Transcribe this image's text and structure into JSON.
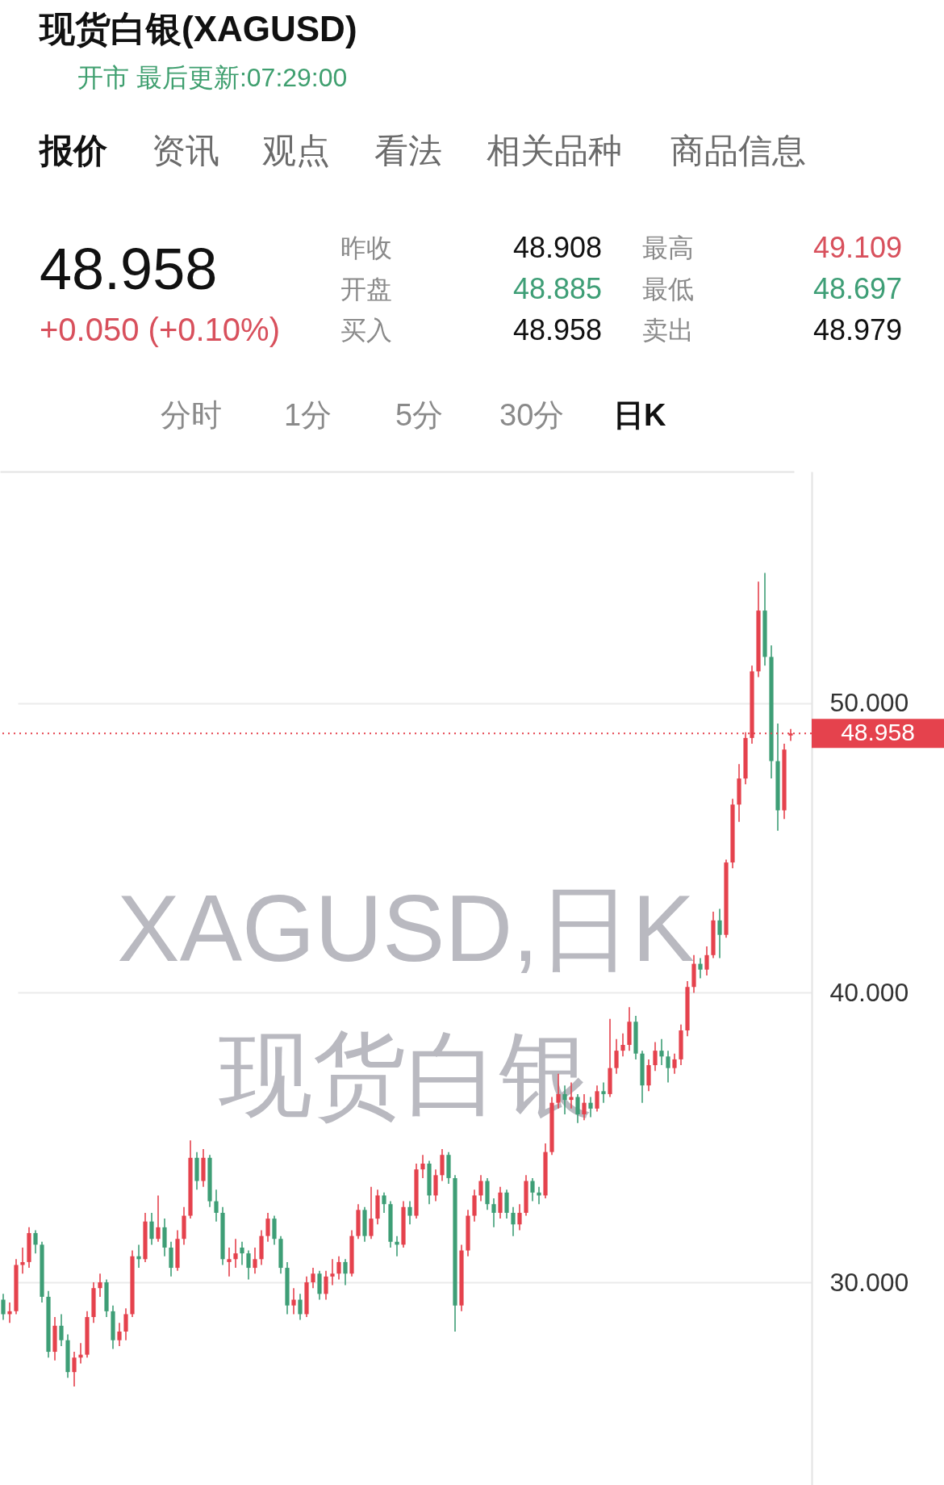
{
  "chart_data": {
    "type": "candlestick",
    "title": "现货白银(XAGUSD)",
    "subtitle": "开市 最后更新:07:29:00",
    "annotations": [
      "报价",
      "资讯",
      "观点",
      "看法",
      "相关品种",
      "商品信息",
      "48.958",
      "+0.050 (+0.10%)",
      "昨收",
      "48.908",
      "开盘",
      "48.885",
      "买入",
      "48.958",
      "最高",
      "49.109",
      "最低",
      "48.697",
      "卖出",
      "48.979",
      "分时",
      "1分",
      "5分",
      "30分",
      "日K",
      "XAGUSD,日K",
      "现货白银"
    ],
    "categories": [
      null,
      null,
      null,
      null,
      null,
      null,
      null,
      null,
      null,
      null,
      null,
      null,
      null,
      null,
      null,
      null,
      null,
      null,
      null,
      null,
      null,
      null,
      null,
      null,
      null,
      null,
      null,
      null,
      null,
      null,
      null,
      null,
      null,
      null,
      null,
      null,
      null,
      null,
      null,
      null,
      null,
      null,
      null,
      null,
      null,
      null,
      null,
      null,
      null,
      null,
      null,
      null,
      null,
      null,
      null,
      null,
      null,
      null,
      null,
      null,
      null,
      null,
      null,
      null,
      null,
      null,
      null,
      null,
      null,
      null,
      null,
      null,
      null,
      null,
      null,
      null,
      null,
      null,
      null,
      null,
      null,
      null,
      null,
      null,
      null,
      null,
      null,
      null,
      null,
      null,
      null,
      null,
      null,
      null,
      null,
      null,
      null,
      null,
      null,
      null,
      null,
      null,
      null,
      null,
      null,
      null,
      null,
      null,
      null,
      null,
      null,
      null,
      null,
      null,
      null,
      null,
      null,
      null,
      null,
      null,
      null,
      null,
      null
    ],
    "ohlc": [
      [
        29.4,
        29.6,
        28.7,
        28.9
      ],
      [
        28.9,
        29.3,
        28.6,
        29.0
      ],
      [
        29.0,
        30.8,
        28.9,
        30.6
      ],
      [
        30.6,
        31.2,
        30.3,
        30.7
      ],
      [
        30.7,
        31.9,
        30.5,
        31.7
      ],
      [
        31.7,
        31.8,
        31.0,
        31.3
      ],
      [
        31.3,
        31.4,
        29.3,
        29.5
      ],
      [
        29.5,
        29.7,
        27.4,
        27.6
      ],
      [
        27.6,
        28.8,
        27.3,
        28.5
      ],
      [
        28.5,
        28.9,
        27.8,
        28.0
      ],
      [
        28.0,
        28.2,
        26.7,
        26.9
      ],
      [
        26.9,
        27.6,
        26.4,
        27.4
      ],
      [
        27.4,
        27.9,
        27.2,
        27.5
      ],
      [
        27.5,
        29.0,
        27.4,
        28.8
      ],
      [
        28.8,
        30.0,
        28.6,
        29.8
      ],
      [
        29.8,
        30.3,
        29.5,
        30.0
      ],
      [
        30.0,
        30.1,
        28.8,
        29.0
      ],
      [
        29.0,
        29.2,
        27.7,
        28.0
      ],
      [
        28.0,
        28.6,
        27.8,
        28.3
      ],
      [
        28.3,
        29.1,
        28.0,
        28.9
      ],
      [
        28.9,
        31.1,
        28.8,
        30.9
      ],
      [
        30.9,
        31.3,
        30.5,
        30.8
      ],
      [
        30.8,
        32.4,
        30.7,
        32.1
      ],
      [
        32.1,
        32.4,
        31.3,
        31.5
      ],
      [
        31.5,
        33.0,
        31.4,
        31.9
      ],
      [
        31.9,
        32.2,
        30.9,
        31.2
      ],
      [
        31.2,
        31.4,
        30.2,
        30.5
      ],
      [
        30.5,
        31.8,
        30.4,
        31.5
      ],
      [
        31.5,
        32.6,
        31.3,
        32.3
      ],
      [
        32.3,
        34.9,
        32.2,
        34.3
      ],
      [
        34.3,
        34.5,
        33.2,
        33.5
      ],
      [
        33.5,
        34.6,
        33.3,
        34.3
      ],
      [
        34.3,
        34.4,
        32.6,
        32.8
      ],
      [
        32.8,
        33.2,
        32.1,
        32.4
      ],
      [
        32.4,
        32.6,
        30.6,
        30.8
      ],
      [
        30.7,
        31.2,
        30.2,
        30.8
      ],
      [
        30.8,
        31.5,
        30.5,
        31.0
      ],
      [
        31.2,
        31.4,
        30.6,
        31.0
      ],
      [
        31.0,
        31.1,
        30.1,
        30.5
      ],
      [
        30.5,
        31.2,
        30.3,
        30.8
      ],
      [
        30.8,
        31.8,
        30.6,
        31.6
      ],
      [
        31.6,
        32.4,
        31.4,
        32.2
      ],
      [
        32.2,
        32.3,
        31.3,
        31.5
      ],
      [
        31.5,
        31.6,
        30.3,
        30.5
      ],
      [
        30.5,
        30.7,
        28.9,
        29.2
      ],
      [
        29.2,
        29.8,
        28.9,
        29.4
      ],
      [
        29.4,
        29.6,
        28.7,
        28.9
      ],
      [
        28.9,
        30.2,
        28.8,
        30.0
      ],
      [
        30.0,
        30.5,
        29.8,
        30.3
      ],
      [
        30.3,
        30.4,
        29.4,
        29.6
      ],
      [
        29.6,
        30.4,
        29.4,
        30.2
      ],
      [
        30.2,
        30.8,
        29.9,
        30.3
      ],
      [
        30.3,
        30.9,
        30.1,
        30.7
      ],
      [
        30.7,
        30.8,
        29.9,
        30.3
      ],
      [
        30.3,
        31.8,
        30.2,
        31.6
      ],
      [
        31.6,
        32.7,
        31.5,
        32.5
      ],
      [
        32.5,
        32.6,
        31.4,
        31.6
      ],
      [
        31.6,
        33.3,
        31.5,
        32.2
      ],
      [
        32.2,
        33.2,
        32.0,
        33.0
      ],
      [
        33.0,
        33.1,
        32.4,
        32.7
      ],
      [
        32.7,
        32.8,
        31.2,
        31.4
      ],
      [
        31.4,
        31.6,
        30.9,
        31.3
      ],
      [
        31.3,
        32.8,
        31.2,
        32.6
      ],
      [
        32.6,
        32.8,
        32.0,
        32.3
      ],
      [
        32.3,
        34.1,
        32.2,
        33.9
      ],
      [
        33.9,
        34.4,
        33.6,
        34.1
      ],
      [
        34.1,
        34.2,
        32.7,
        33.0
      ],
      [
        33.0,
        33.9,
        32.8,
        33.7
      ],
      [
        33.7,
        34.6,
        33.5,
        34.4
      ],
      [
        34.4,
        34.5,
        33.4,
        33.6
      ],
      [
        33.6,
        33.7,
        28.3,
        29.2
      ],
      [
        29.2,
        31.3,
        29.0,
        31.1
      ],
      [
        31.1,
        32.5,
        30.9,
        32.3
      ],
      [
        32.3,
        33.2,
        32.1,
        33.0
      ],
      [
        33.0,
        33.7,
        32.8,
        33.5
      ],
      [
        33.5,
        33.6,
        32.5,
        32.7
      ],
      [
        32.7,
        32.9,
        31.9,
        32.4
      ],
      [
        32.4,
        33.3,
        32.2,
        33.1
      ],
      [
        33.1,
        33.2,
        32.2,
        32.4
      ],
      [
        32.4,
        32.6,
        31.6,
        32.0
      ],
      [
        32.0,
        32.7,
        31.8,
        32.4
      ],
      [
        32.4,
        33.7,
        32.3,
        33.5
      ],
      [
        33.5,
        33.6,
        32.8,
        33.1
      ],
      [
        33.1,
        33.3,
        32.7,
        33.0
      ],
      [
        33.0,
        34.8,
        32.9,
        34.5
      ],
      [
        34.5,
        36.4,
        34.4,
        36.2
      ],
      [
        36.2,
        37.2,
        36.0,
        36.5
      ],
      [
        36.5,
        36.8,
        35.8,
        36.3
      ],
      [
        36.3,
        36.9,
        36.0,
        36.4
      ],
      [
        36.4,
        36.5,
        35.5,
        35.8
      ],
      [
        35.8,
        36.5,
        35.6,
        36.2
      ],
      [
        36.2,
        36.4,
        35.7,
        36.0
      ],
      [
        36.0,
        36.8,
        35.9,
        36.6
      ],
      [
        36.6,
        36.9,
        36.2,
        36.5
      ],
      [
        36.5,
        39.1,
        36.4,
        37.4
      ],
      [
        37.4,
        38.4,
        37.2,
        38.0
      ],
      [
        38.0,
        38.6,
        37.8,
        38.2
      ],
      [
        38.2,
        39.5,
        38.0,
        39.0
      ],
      [
        39.0,
        39.2,
        37.7,
        37.9
      ],
      [
        37.9,
        38.0,
        36.2,
        36.8
      ],
      [
        36.8,
        37.7,
        36.6,
        37.5
      ],
      [
        37.5,
        38.3,
        37.3,
        38.0
      ],
      [
        38.0,
        38.4,
        37.5,
        37.8
      ],
      [
        37.8,
        38.0,
        36.9,
        37.4
      ],
      [
        37.4,
        37.9,
        37.2,
        37.7
      ],
      [
        37.7,
        38.9,
        37.5,
        38.7
      ],
      [
        38.7,
        40.4,
        38.5,
        40.2
      ],
      [
        40.2,
        41.3,
        40.0,
        41.0
      ],
      [
        41.0,
        41.2,
        40.5,
        40.8
      ],
      [
        40.8,
        41.6,
        40.6,
        41.3
      ],
      [
        41.3,
        42.8,
        41.2,
        42.5
      ],
      [
        42.5,
        42.9,
        41.2,
        42.0
      ],
      [
        42.0,
        44.6,
        41.9,
        44.5
      ],
      [
        44.5,
        46.7,
        44.3,
        46.5
      ],
      [
        46.5,
        47.9,
        45.9,
        47.4
      ],
      [
        47.4,
        49.0,
        47.2,
        48.8
      ],
      [
        48.8,
        51.3,
        48.6,
        51.1
      ],
      [
        51.1,
        54.2,
        50.9,
        53.2
      ],
      [
        53.2,
        54.5,
        51.3,
        51.6
      ],
      [
        51.6,
        52.0,
        47.4,
        48.0
      ],
      [
        48.0,
        49.3,
        45.6,
        46.3
      ],
      [
        46.3,
        48.6,
        46.0,
        48.4
      ],
      [
        48.885,
        49.109,
        48.697,
        48.958
      ]
    ],
    "colors": [
      "#3e9e76",
      "#e5424d",
      "#e5424d",
      "#e5424d",
      "#e5424d",
      "#3e9e76",
      "#3e9e76",
      "#3e9e76",
      "#e5424d",
      "#3e9e76",
      "#3e9e76",
      "#e5424d",
      "#e5424d",
      "#e5424d",
      "#e5424d",
      "#e5424d",
      "#3e9e76",
      "#3e9e76",
      "#e5424d",
      "#e5424d",
      "#e5424d",
      "#3e9e76",
      "#e5424d",
      "#3e9e76",
      "#e5424d",
      "#3e9e76",
      "#3e9e76",
      "#e5424d",
      "#e5424d",
      "#e5424d",
      "#3e9e76",
      "#e5424d",
      "#3e9e76",
      "#3e9e76",
      "#3e9e76",
      "#e5424d",
      "#e5424d",
      "#3e9e76",
      "#3e9e76",
      "#e5424d",
      "#e5424d",
      "#e5424d",
      "#3e9e76",
      "#3e9e76",
      "#3e9e76",
      "#e5424d",
      "#3e9e76",
      "#e5424d",
      "#e5424d",
      "#3e9e76",
      "#e5424d",
      "#e5424d",
      "#e5424d",
      "#3e9e76",
      "#e5424d",
      "#e5424d",
      "#3e9e76",
      "#e5424d",
      "#e5424d",
      "#3e9e76",
      "#3e9e76",
      "#3e9e76",
      "#e5424d",
      "#3e9e76",
      "#e5424d",
      "#e5424d",
      "#3e9e76",
      "#e5424d",
      "#e5424d",
      "#3e9e76",
      "#3e9e76",
      "#e5424d",
      "#e5424d",
      "#e5424d",
      "#e5424d",
      "#3e9e76",
      "#3e9e76",
      "#e5424d",
      "#3e9e76",
      "#3e9e76",
      "#e5424d",
      "#e5424d",
      "#3e9e76",
      "#3e9e76",
      "#e5424d",
      "#e5424d",
      "#e5424d",
      "#3e9e76",
      "#e5424d",
      "#3e9e76",
      "#e5424d",
      "#3e9e76",
      "#e5424d",
      "#3e9e76",
      "#e5424d",
      "#e5424d",
      "#e5424d",
      "#e5424d",
      "#3e9e76",
      "#3e9e76",
      "#e5424d",
      "#e5424d",
      "#3e9e76",
      "#3e9e76",
      "#e5424d",
      "#e5424d",
      "#e5424d",
      "#e5424d",
      "#3e9e76",
      "#e5424d",
      "#e5424d",
      "#3e9e76",
      "#e5424d",
      "#e5424d",
      "#e5424d",
      "#e5424d",
      "#e5424d",
      "#e5424d",
      "#3e9e76",
      "#3e9e76",
      "#3e9e76",
      "#e5424d",
      "#e5424d"
    ],
    "ylim": [
      23,
      58
    ],
    "yticks": [
      {
        "value": 30,
        "label": "30.000"
      },
      {
        "value": 40,
        "label": "40.000"
      },
      {
        "value": 50,
        "label": "50.000"
      }
    ],
    "tick_labels": "y",
    "grid": "y",
    "ref_lines": [
      {
        "axis": "y",
        "value": 48.958,
        "label": "48.958",
        "color": "#e5424d",
        "line_style": "dotted"
      }
    ]
  }
}
